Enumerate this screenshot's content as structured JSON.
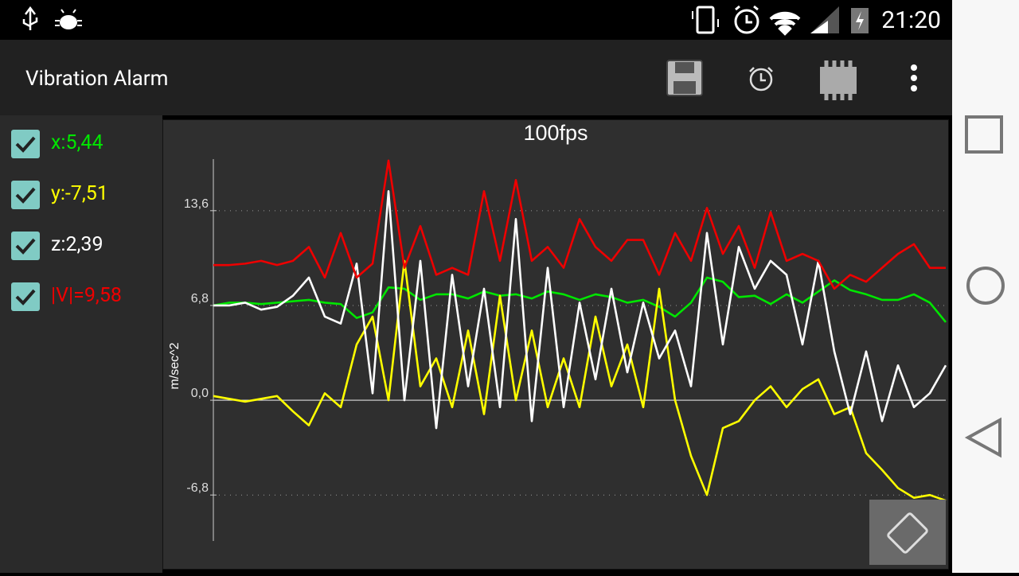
{
  "status": {
    "time": "21:20"
  },
  "app": {
    "title": "Vibration Alarm"
  },
  "chart_data": {
    "type": "line",
    "title": "100fps",
    "y_label": "m/sec^2",
    "ylim": [
      -10.1,
      17.3
    ],
    "yticks": [
      {
        "value": 13.6,
        "label": "13,6"
      },
      {
        "value": 6.8,
        "label": "6,8"
      },
      {
        "value": 0,
        "label": "0,0"
      },
      {
        "value": -6.8,
        "label": "-6,8"
      }
    ],
    "series": [
      {
        "name": "x:5,44",
        "color": "#00e600",
        "values": [
          6.8,
          7.0,
          7.0,
          6.9,
          7.0,
          7.1,
          7.2,
          7.0,
          6.9,
          5.9,
          6.3,
          8.1,
          8.0,
          7.2,
          7.6,
          7.6,
          7.3,
          7.8,
          7.5,
          7.6,
          7.3,
          7.8,
          7.6,
          7.2,
          7.6,
          7.4,
          7.0,
          7.2,
          6.7,
          6.0,
          7.0,
          8.8,
          8.5,
          7.4,
          7.5,
          6.9,
          7.6,
          7.0,
          7.8,
          8.6,
          7.9,
          7.6,
          7.2,
          7.2,
          7.6,
          7.0,
          5.6
        ]
      },
      {
        "name": "y:-7,51",
        "color": "#ffff00",
        "values": [
          0.3,
          0.1,
          -0.1,
          0.1,
          0.3,
          -0.8,
          -1.8,
          0.5,
          -0.5,
          4,
          6,
          0,
          10,
          1,
          3,
          -0.5,
          5,
          -1,
          7.5,
          0,
          5,
          -0.5,
          3,
          -0.5,
          6,
          1,
          4,
          -0.5,
          8,
          0,
          -4,
          -6.8,
          -2,
          -1.5,
          0,
          1,
          -0.5,
          0.8,
          1.5,
          -1,
          -0.5,
          -3.8,
          -5,
          -6.3,
          -7,
          -6.8,
          -7.2
        ]
      },
      {
        "name": "z:2,39",
        "color": "#ffffff",
        "values": [
          6.8,
          6.8,
          7.0,
          6.5,
          6.7,
          7.5,
          8.8,
          6.0,
          5.5,
          9.8,
          0.5,
          15,
          0,
          10,
          -2,
          9,
          1,
          8,
          -0.5,
          13,
          -1.5,
          9.5,
          -0.5,
          7,
          1.5,
          8,
          2,
          7,
          3,
          5,
          1,
          12,
          4,
          11,
          8,
          10,
          9,
          4,
          10,
          3.5,
          -1,
          3.5,
          -1.5,
          2.5,
          -0.5,
          0.5,
          2.5
        ]
      },
      {
        "name": "|V|=9,58",
        "color": "#ee0000",
        "values": [
          9.7,
          9.7,
          9.8,
          10,
          9.7,
          10,
          11,
          8.8,
          12,
          8.8,
          9.8,
          17.2,
          9.5,
          12.5,
          9,
          9.5,
          9.0,
          15.0,
          10.0,
          15.8,
          10,
          11,
          9.5,
          13,
          11,
          10,
          11.5,
          11.5,
          9.0,
          12,
          10,
          13.8,
          10.5,
          12.5,
          9.5,
          13.5,
          10.0,
          10.5,
          10,
          8.0,
          9.0,
          8.5,
          9.5,
          10.5,
          11.2,
          9.5,
          9.5
        ]
      }
    ]
  }
}
